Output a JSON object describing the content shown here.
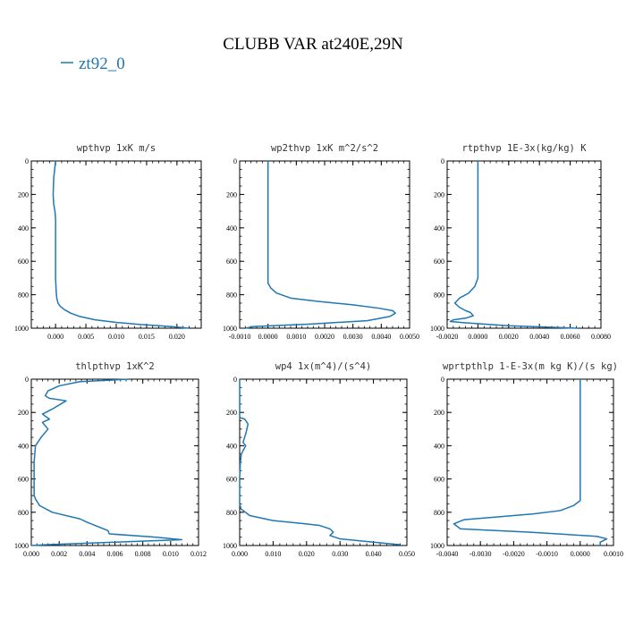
{
  "figure_title": "CLUBB VAR at240E,29N",
  "legend": {
    "label": "zt92_0",
    "color": "#1f77b4"
  },
  "colors": {
    "line": "#1f77b4",
    "axis": "#000000",
    "background": "#ffffff"
  },
  "chart_data": [
    {
      "type": "line",
      "title": "wpthvp  1xK m/s",
      "xlim": [
        -0.004,
        0.024
      ],
      "ylim": [
        1000,
        0
      ],
      "xticks": [
        0.0,
        0.005,
        0.01,
        0.015,
        0.02
      ],
      "xtick_labels": [
        "0.000",
        "0.005",
        "0.010",
        "0.015",
        "0.020"
      ],
      "yticks": [
        0,
        200,
        400,
        600,
        800,
        1000
      ],
      "ytick_labels": [
        "0",
        "200",
        "400",
        "600",
        "800",
        "1000"
      ],
      "series": [
        {
          "name": "zt92_0",
          "x": [
            0.0,
            -0.0003,
            -0.0004,
            -0.0003,
            -0.0001,
            0.0,
            0.0,
            0.0,
            0.0001,
            0.0002,
            0.0004,
            0.0008,
            0.0015,
            0.0025,
            0.004,
            0.0065,
            0.01,
            0.014,
            0.019,
            0.022
          ],
          "y": [
            0,
            100,
            200,
            260,
            300,
            350,
            500,
            700,
            780,
            820,
            850,
            870,
            890,
            910,
            930,
            950,
            965,
            978,
            990,
            1000
          ]
        }
      ]
    },
    {
      "type": "line",
      "title": "wp2thvp  1xK m^2/s^2",
      "xlim": [
        -0.001,
        0.005
      ],
      "ylim": [
        1000,
        0
      ],
      "xticks": [
        -0.001,
        0.0,
        0.001,
        0.002,
        0.003,
        0.004,
        0.005
      ],
      "xtick_labels": [
        "-0.0010",
        "0.0000",
        "0.0010",
        "0.0020",
        "0.0030",
        "0.0040",
        "0.0050"
      ],
      "yticks": [
        0,
        200,
        400,
        600,
        800,
        1000
      ],
      "ytick_labels": [
        "0",
        "200",
        "400",
        "600",
        "800",
        "1000"
      ],
      "series": [
        {
          "name": "zt92_0",
          "x": [
            0.0,
            0.0,
            0.0,
            0.0001,
            0.0003,
            0.0008,
            0.0018,
            0.003,
            0.0039,
            0.0044,
            0.0045,
            0.0043,
            0.0035,
            0.0015,
            -0.0005,
            -0.0008
          ],
          "y": [
            0,
            400,
            730,
            760,
            790,
            820,
            840,
            860,
            880,
            895,
            910,
            930,
            955,
            975,
            990,
            1000
          ]
        }
      ]
    },
    {
      "type": "line",
      "title": "rtpthvp  1E-3x(kg/kg) K",
      "xlim": [
        -0.002,
        0.008
      ],
      "ylim": [
        1000,
        0
      ],
      "xticks": [
        -0.002,
        0.0,
        0.002,
        0.004,
        0.006,
        0.008
      ],
      "xtick_labels": [
        "-0.0020",
        "0.0000",
        "0.0020",
        "0.0040",
        "0.0060",
        "0.0080"
      ],
      "yticks": [
        0,
        200,
        400,
        600,
        800,
        1000
      ],
      "ytick_labels": [
        "0",
        "200",
        "400",
        "600",
        "800",
        "1000"
      ],
      "series": [
        {
          "name": "zt92_0",
          "x": [
            0.0,
            0.0,
            0.0,
            -0.0002,
            -0.0006,
            -0.0012,
            -0.0015,
            -0.0012,
            -0.0008,
            -0.0005,
            -0.0003,
            -0.0008,
            -0.0016,
            -0.0018,
            -0.0008,
            0.002,
            0.0065
          ],
          "y": [
            0,
            500,
            700,
            750,
            790,
            820,
            850,
            875,
            895,
            905,
            925,
            940,
            950,
            960,
            968,
            985,
            1000
          ]
        }
      ]
    },
    {
      "type": "line",
      "title": "thlpthvp  1xK^2",
      "xlim": [
        0.0,
        0.012
      ],
      "ylim": [
        1000,
        0
      ],
      "xticks": [
        0.0,
        0.002,
        0.004,
        0.006,
        0.008,
        0.01,
        0.012
      ],
      "xtick_labels": [
        "0.000",
        "0.002",
        "0.004",
        "0.006",
        "0.008",
        "0.010",
        "0.012"
      ],
      "yticks": [
        0,
        200,
        400,
        600,
        800,
        1000
      ],
      "ytick_labels": [
        "0",
        "200",
        "400",
        "600",
        "800",
        "1000"
      ],
      "series": [
        {
          "name": "zt92_0",
          "x": [
            0.007,
            0.0035,
            0.002,
            0.0012,
            0.001,
            0.0013,
            0.0025,
            0.0015,
            0.0008,
            0.0013,
            0.0008,
            0.0012,
            0.0007,
            0.0003,
            0.0002,
            0.0002,
            0.0003,
            0.0006,
            0.0015,
            0.0035,
            0.004,
            0.0055,
            0.0056,
            0.009,
            0.0108,
            0.006,
            0.001,
            0.0
          ],
          "y": [
            0,
            15,
            40,
            70,
            100,
            115,
            130,
            180,
            210,
            240,
            260,
            300,
            350,
            400,
            500,
            700,
            720,
            760,
            800,
            840,
            860,
            910,
            930,
            950,
            965,
            980,
            995,
            1000
          ]
        }
      ]
    },
    {
      "type": "line",
      "title": "wp4  1x(m^4)/(s^4)",
      "xlim": [
        0.0,
        0.05
      ],
      "ylim": [
        1000,
        0
      ],
      "xticks": [
        0.0,
        0.01,
        0.02,
        0.03,
        0.04,
        0.05
      ],
      "xtick_labels": [
        "0.000",
        "0.010",
        "0.020",
        "0.030",
        "0.040",
        "0.050"
      ],
      "yticks": [
        0,
        200,
        400,
        600,
        800,
        1000
      ],
      "ytick_labels": [
        "0",
        "200",
        "400",
        "600",
        "800",
        "1000"
      ],
      "series": [
        {
          "name": "zt92_0",
          "x": [
            0.0,
            0.0,
            0.0,
            0.0015,
            0.0025,
            0.0018,
            0.001,
            0.0018,
            0.0005,
            0.0002,
            0.0,
            0.0,
            0.0004,
            0.003,
            0.01,
            0.02,
            0.024,
            0.027,
            0.028,
            0.027,
            0.03,
            0.04,
            0.048
          ],
          "y": [
            0,
            150,
            230,
            240,
            270,
            330,
            380,
            400,
            450,
            500,
            600,
            750,
            780,
            820,
            850,
            870,
            880,
            900,
            920,
            940,
            960,
            980,
            995
          ]
        }
      ]
    },
    {
      "type": "line",
      "title": "wprtpthlp  1-E-3x(m kg K)/(s kg)",
      "xlim": [
        -0.004,
        0.001
      ],
      "ylim": [
        1000,
        0
      ],
      "xticks": [
        -0.004,
        -0.003,
        -0.002,
        -0.001,
        0.0,
        0.001
      ],
      "xtick_labels": [
        "-0.0040",
        "-0.0030",
        "-0.0020",
        "-0.0010",
        "0.0000",
        "0.0010"
      ],
      "yticks": [
        0,
        200,
        400,
        600,
        800,
        1000
      ],
      "ytick_labels": [
        "0",
        "200",
        "400",
        "600",
        "800",
        "1000"
      ],
      "series": [
        {
          "name": "zt92_0",
          "x": [
            0.0,
            0.0,
            0.0,
            -0.0002,
            -0.0006,
            -0.0014,
            -0.0026,
            -0.0035,
            -0.0038,
            -0.0036,
            -0.0015,
            0.0005,
            0.0008,
            0.0006,
            0.0006
          ],
          "y": [
            0,
            500,
            730,
            760,
            790,
            810,
            830,
            845,
            870,
            900,
            920,
            945,
            960,
            980,
            1000
          ]
        }
      ]
    }
  ]
}
